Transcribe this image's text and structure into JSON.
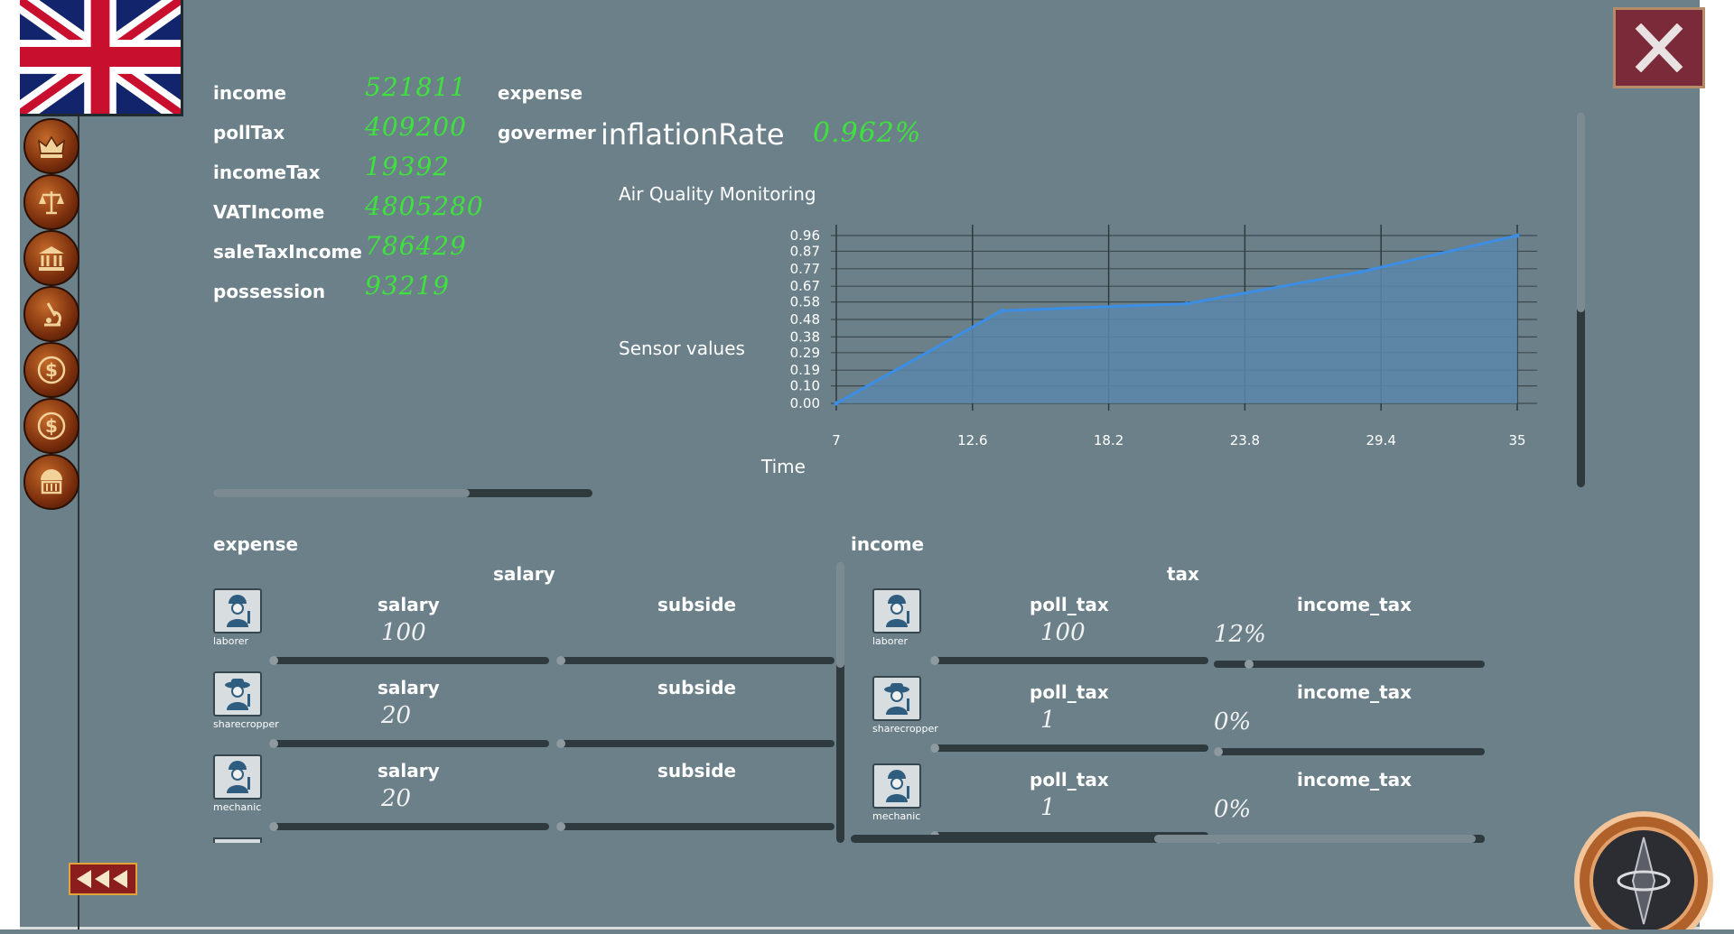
{
  "stats": {
    "income_label": "income",
    "income_value": "521811",
    "pollTax_label": "pollTax",
    "pollTax_value": "409200",
    "incomeTax_label": "incomeTax",
    "incomeTax_value": "19392",
    "VATIncome_label": "VATIncome",
    "VATIncome_value": "4805280",
    "saleTaxIncome_label": "saleTaxIncome",
    "saleTaxIncome_value": "786429",
    "possession_label": "possession",
    "possession_value": "93219",
    "expense_label": "expense",
    "govermer_label": "govermer",
    "inflation_label": "inflationRate",
    "inflation_value": "0.962%"
  },
  "chart_data": {
    "type": "area",
    "title": "Air Quality Monitoring",
    "xlabel": "Time",
    "ylabel": "Sensor values",
    "x_ticks": [
      "7",
      "12.6",
      "18.2",
      "23.8",
      "29.4",
      "35"
    ],
    "y_ticks": [
      "0.00",
      "0.10",
      "0.19",
      "0.29",
      "0.38",
      "0.48",
      "0.58",
      "0.67",
      "0.77",
      "0.87",
      "0.96"
    ],
    "xlim": [
      7,
      35
    ],
    "ylim": [
      0,
      0.96
    ],
    "grid": true,
    "series": [
      {
        "values": [
          [
            7,
            0.0
          ],
          [
            13.8,
            0.53
          ],
          [
            21.4,
            0.57
          ],
          [
            28.5,
            0.75
          ],
          [
            35,
            0.96
          ]
        ]
      }
    ],
    "colors": {
      "line": "#3a8ee6",
      "fill": "#5a86ab"
    }
  },
  "expense_section": {
    "title": "expense",
    "group_label": "salary",
    "rows": [
      {
        "worker": "laborer",
        "col1_label": "salary",
        "col1_value": "100",
        "col2_label": "subside",
        "col2_value": ""
      },
      {
        "worker": "sharecropper",
        "col1_label": "salary",
        "col1_value": "20",
        "col2_label": "subside",
        "col2_value": ""
      },
      {
        "worker": "mechanic",
        "col1_label": "salary",
        "col1_value": "20",
        "col2_label": "subside",
        "col2_value": ""
      }
    ]
  },
  "income_section": {
    "title": "income",
    "group_label": "tax",
    "rows": [
      {
        "worker": "laborer",
        "col1_label": "poll_tax",
        "col1_value": "100",
        "col2_label": "income_tax",
        "col2_value": "12%"
      },
      {
        "worker": "sharecropper",
        "col1_label": "poll_tax",
        "col1_value": "1",
        "col2_label": "income_tax",
        "col2_value": "0%"
      },
      {
        "worker": "mechanic",
        "col1_label": "poll_tax",
        "col1_value": "1",
        "col2_label": "income_tax",
        "col2_value": "0%"
      }
    ]
  },
  "icons": {
    "flag": "uk-flag-icon",
    "nav": [
      "crown-icon",
      "scales-icon",
      "bank-icon",
      "microscope-icon",
      "dollar-coin-icon",
      "dollar-coin-icon-2",
      "tax-icon"
    ],
    "close": "close-icon",
    "back": "back-arrows-icon",
    "compass": "compass-icon"
  },
  "colors": {
    "background": "#6b8089",
    "value_green": "#3ee23c",
    "nav_bronze": "#7a2e0c",
    "close_bg": "#7a2a38"
  }
}
